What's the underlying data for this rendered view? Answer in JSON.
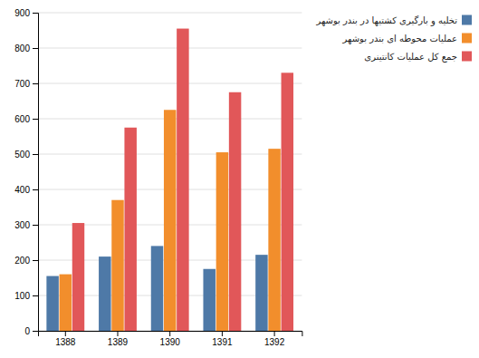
{
  "chart_data": {
    "type": "bar",
    "categories": [
      "1388",
      "1389",
      "1390",
      "1391",
      "1392"
    ],
    "series": [
      {
        "name": "تخلیه و بارگیری کشتیها در بندر بوشهر",
        "values": [
          155,
          210,
          240,
          175,
          215
        ]
      },
      {
        "name": "عملیات محوطه ای بندر بوشهر",
        "values": [
          160,
          370,
          625,
          505,
          515
        ]
      },
      {
        "name": "جمع کل عملیات کانتینری",
        "values": [
          305,
          575,
          855,
          675,
          730
        ]
      }
    ],
    "ylim": [
      0,
      900
    ],
    "yticks": [
      0,
      100,
      200,
      300,
      400,
      500,
      600,
      700,
      800,
      900
    ],
    "grid": true,
    "legend": "right"
  }
}
